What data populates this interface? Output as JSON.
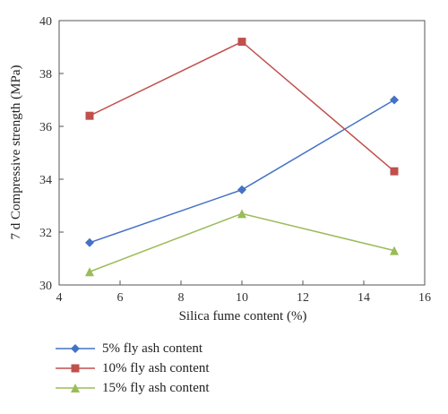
{
  "chart_data": {
    "type": "line",
    "xlabel": "Silica fume content (%)",
    "ylabel": "7 d Compressive strength (MPa)",
    "xlim": [
      4,
      16
    ],
    "ylim": [
      30,
      40
    ],
    "xticks": [
      4,
      6,
      8,
      10,
      12,
      14,
      16
    ],
    "yticks": [
      30,
      32,
      34,
      36,
      38,
      40
    ],
    "grid": false,
    "legend_position": "bottom",
    "x": [
      5,
      10,
      15
    ],
    "series": [
      {
        "name": "5% fly ash content",
        "values": [
          31.6,
          33.6,
          37.0
        ],
        "color": "#4472c4",
        "marker": "diamond"
      },
      {
        "name": "10% fly ash content",
        "values": [
          36.4,
          39.2,
          34.3
        ],
        "color": "#c0504d",
        "marker": "square"
      },
      {
        "name": "15% fly ash content",
        "values": [
          30.5,
          32.7,
          31.3
        ],
        "color": "#9bbb59",
        "marker": "triangle"
      }
    ]
  }
}
